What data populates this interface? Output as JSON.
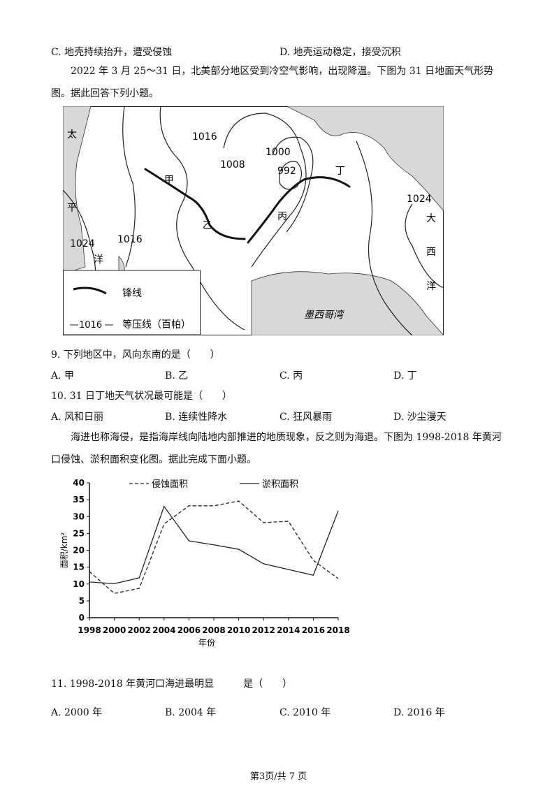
{
  "prev_options": [
    "C. 地壳持续抬升，遭受侵蚀",
    "D. 地壳运动稳定，接受沉积"
  ],
  "intro1": "2022 年 3 月 25～31 日，北美部分地区受到冷空气影响，出现降温。下图为 31 日地面天气形势图。据此回答下列小题。",
  "map": {
    "isobar_labels": [
      "1016",
      "1008",
      "1000",
      "992",
      "1016",
      "1024",
      "1024"
    ],
    "places": [
      "甲",
      "乙",
      "丙",
      "丁"
    ],
    "pacific": [
      "太",
      "平",
      "洋"
    ],
    "atlantic": [
      "大",
      "西",
      "洋"
    ],
    "gulf": "墨西哥湾",
    "legend": {
      "front": "锋线",
      "isobar_sample": "1016",
      "isobar": "等压线（百帕）"
    }
  },
  "q9": {
    "stem": "9. 下列地区中，风向东南的是（　　）",
    "options": [
      "A. 甲",
      "B. 乙",
      "C. 丙",
      "D. 丁"
    ]
  },
  "q10": {
    "stem": "10. 31 日丁地天气状况最可能是（　　）",
    "options": [
      "A. 风和日丽",
      "B. 连续性降水",
      "C. 狂风暴雨",
      "D. 沙尘漫天"
    ]
  },
  "intro2": "海进也称海侵，是指海岸线向陆地内部推进的地质现象，反之则为海退。下图为 1998-2018 年黄河口侵蚀、淤积面积变化图。据此完成下面小题。",
  "chart": {
    "type": "line",
    "x": [
      1998,
      2000,
      2002,
      2004,
      2006,
      2008,
      2010,
      2012,
      2014,
      2016,
      2018
    ],
    "series": [
      {
        "name": "侵蚀面积",
        "color": "#222222",
        "style": "dashed",
        "values": [
          13.7,
          7.2,
          8.7,
          27.8,
          33.2,
          33.2,
          34.6,
          28.2,
          28.6,
          17,
          11.6
        ]
      },
      {
        "name": "淤积面积",
        "color": "#222222",
        "style": "solid",
        "values": [
          10.6,
          10.1,
          11.8,
          33,
          22.8,
          21.6,
          20.3,
          16,
          14.3,
          12.6,
          31.7
        ]
      }
    ],
    "xlim": [
      1998,
      2018
    ],
    "xticks": [
      1998,
      2000,
      2002,
      2004,
      2006,
      2008,
      2010,
      2012,
      2014,
      2016,
      2018
    ],
    "ylim": [
      0,
      40
    ],
    "yticks": [
      0,
      5,
      10,
      15,
      20,
      25,
      30,
      35,
      40
    ],
    "ylabel": "面积/km²",
    "xlabel": "年份"
  },
  "q11": {
    "stem": "11. 1998-2018 年黄河口海进最明显　　　是（　　）",
    "options": [
      "A. 2000 年",
      "B. 2004 年",
      "C. 2010 年",
      "D. 2016 年"
    ]
  },
  "footer": "第3页/共 7 页"
}
